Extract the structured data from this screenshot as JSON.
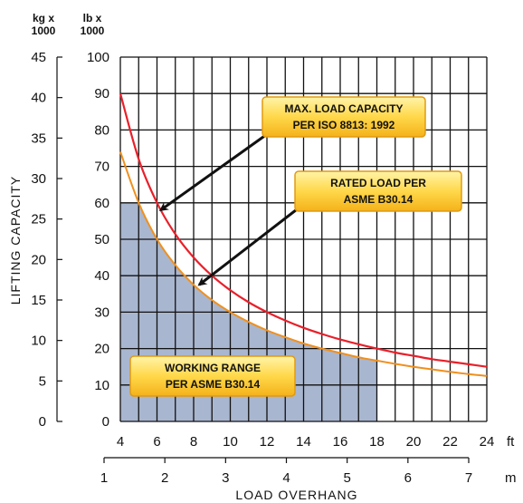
{
  "chart_data": {
    "type": "line",
    "ylabel": "LIFTING CAPACITY",
    "xlabel": "LOAD OVERHANG",
    "y_left_unit": [
      "kg x",
      "1000"
    ],
    "y_right_unit": [
      "lb x",
      "1000"
    ],
    "x_primary_unit": "ft",
    "x_secondary_unit": "m",
    "x_ft_range": [
      4,
      24
    ],
    "x_ft_ticks": [
      "4",
      "6",
      "8",
      "10",
      "12",
      "14",
      "16",
      "18",
      "20",
      "22",
      "24"
    ],
    "x_m_range": [
      1,
      7
    ],
    "x_m_ticks": [
      "1",
      "2",
      "3",
      "4",
      "5",
      "6",
      "7"
    ],
    "y_lb_range": [
      0,
      100
    ],
    "y_lb_ticks": [
      "0",
      "10",
      "20",
      "30",
      "40",
      "50",
      "60",
      "70",
      "80",
      "90",
      "100"
    ],
    "y_kg_range": [
      0,
      45
    ],
    "y_kg_ticks": [
      "0",
      "5",
      "10",
      "15",
      "20",
      "25",
      "30",
      "35",
      "40",
      "45"
    ],
    "grid": true,
    "series": [
      {
        "key": "max_load",
        "color": "#e8202a",
        "x": [
          4,
          5,
          6,
          7,
          8,
          9,
          10,
          11,
          12,
          13,
          14,
          15,
          16,
          17,
          18,
          19,
          20,
          21,
          22,
          23,
          24
        ],
        "y": [
          90,
          72,
          60,
          51.4,
          45,
          40,
          36,
          32.7,
          30,
          27.7,
          25.7,
          24,
          22.5,
          21.2,
          20,
          18.9,
          18,
          17.1,
          16.4,
          15.7,
          15
        ]
      },
      {
        "key": "rated_load",
        "color": "#f0901e",
        "x": [
          4,
          5,
          6,
          7,
          8,
          9,
          10,
          11,
          12,
          13,
          14,
          15,
          16,
          17,
          18,
          19,
          20,
          21,
          22,
          23,
          24
        ],
        "y": [
          74,
          60,
          50,
          42.9,
          37.5,
          33.3,
          30,
          27.3,
          25,
          23.1,
          21.4,
          20,
          18.8,
          17.6,
          16.7,
          15.8,
          15,
          14.3,
          13.6,
          13,
          12.5
        ]
      }
    ],
    "working_range": {
      "color": "#a9b6cf",
      "x_start": 4,
      "x_end": 18,
      "y_cap": 60,
      "follows": "rated_load"
    },
    "annotations": [
      {
        "key": "max",
        "lines": [
          "MAX. LOAD CAPACITY",
          "PER ISO 8813: 1992"
        ],
        "arrow_to": [
          6.2,
          58
        ]
      },
      {
        "key": "rated",
        "lines": [
          "RATED LOAD PER",
          "ASME B30.14"
        ],
        "arrow_to": [
          8.3,
          37.5
        ]
      },
      {
        "key": "working",
        "lines": [
          "WORKING RANGE",
          "PER ASME B30.14"
        ]
      }
    ]
  }
}
